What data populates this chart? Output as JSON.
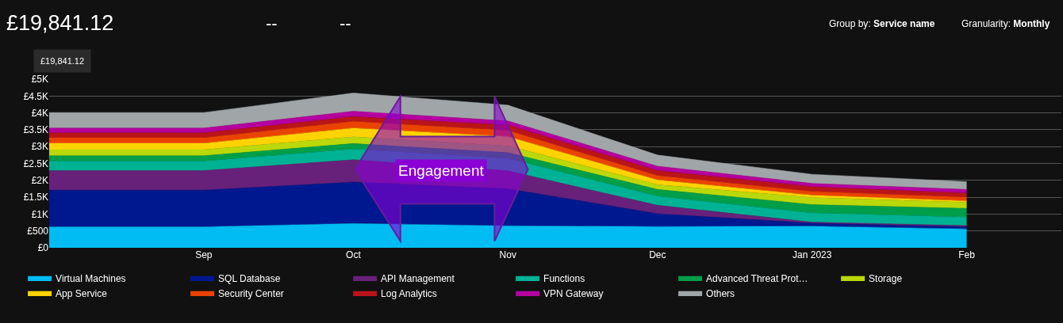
{
  "chart_data": {
    "type": "area",
    "stacked": true,
    "title": "£19,841.12",
    "annotations": [
      "£19,841.12",
      "--",
      "--",
      "Group by: Service name",
      "Granularity: Monthly",
      "Engagement"
    ],
    "x": [
      "2022-08",
      "2022-09",
      "2022-10",
      "2022-11",
      "2022-12",
      "2023-01",
      "2023-02"
    ],
    "xlim": [
      "2022-08-01",
      "2023-02-20"
    ],
    "xticks": [
      {
        "value": "2022-09",
        "label": "Sep"
      },
      {
        "value": "2022-10",
        "label": "Oct"
      },
      {
        "value": "2022-11",
        "label": "Nov"
      },
      {
        "value": "2022-12",
        "label": "Dec"
      },
      {
        "value": "2023-01",
        "label": "Jan 2023"
      },
      {
        "value": "2023-02",
        "label": "Feb"
      }
    ],
    "ylim": [
      0,
      5000
    ],
    "yticks": [
      {
        "value": 0,
        "label": "£0"
      },
      {
        "value": 500,
        "label": "£500"
      },
      {
        "value": 1000,
        "label": "£1K"
      },
      {
        "value": 1500,
        "label": "£1.5K"
      },
      {
        "value": 2000,
        "label": "£2K"
      },
      {
        "value": 2500,
        "label": "£2.5K"
      },
      {
        "value": 3000,
        "label": "£3K"
      },
      {
        "value": 3500,
        "label": "£3.5K"
      },
      {
        "value": 4000,
        "label": "£4K"
      },
      {
        "value": 4500,
        "label": "£4.5K"
      },
      {
        "value": 5000,
        "label": "£5K"
      }
    ],
    "grid": "y",
    "legend": "bottom",
    "series": [
      {
        "name": "Virtual Machines",
        "color": "#00bcf2",
        "values": [
          620,
          620,
          720,
          650,
          630,
          640,
          560
        ]
      },
      {
        "name": "SQL Database",
        "color": "#00188f",
        "values": [
          1090,
          1090,
          1230,
          1100,
          380,
          90,
          60
        ]
      },
      {
        "name": "API Management",
        "color": "#68217a",
        "values": [
          580,
          580,
          660,
          530,
          250,
          30,
          40
        ]
      },
      {
        "name": "Functions",
        "color": "#00b294",
        "values": [
          280,
          280,
          320,
          370,
          270,
          270,
          250
        ]
      },
      {
        "name": "Advanced Threat Prot…",
        "color": "#009e49",
        "values": [
          160,
          160,
          160,
          170,
          200,
          250,
          260
        ]
      },
      {
        "name": "Storage",
        "color": "#bad80a",
        "values": [
          180,
          180,
          200,
          200,
          140,
          210,
          180
        ]
      },
      {
        "name": "App Service",
        "color": "#ffd300",
        "values": [
          190,
          190,
          260,
          280,
          140,
          70,
          40
        ]
      },
      {
        "name": "Security Center",
        "color": "#ea4300",
        "values": [
          160,
          160,
          200,
          180,
          130,
          110,
          110
        ]
      },
      {
        "name": "Log Analytics",
        "color": "#ba141a",
        "values": [
          150,
          150,
          140,
          160,
          150,
          140,
          120
        ]
      },
      {
        "name": "VPN Gateway",
        "color": "#b4009e",
        "values": [
          140,
          140,
          160,
          120,
          130,
          100,
          110
        ]
      },
      {
        "name": "Others",
        "color": "#a0a5a8",
        "values": [
          460,
          460,
          540,
          470,
          330,
          270,
          230
        ]
      }
    ]
  }
}
